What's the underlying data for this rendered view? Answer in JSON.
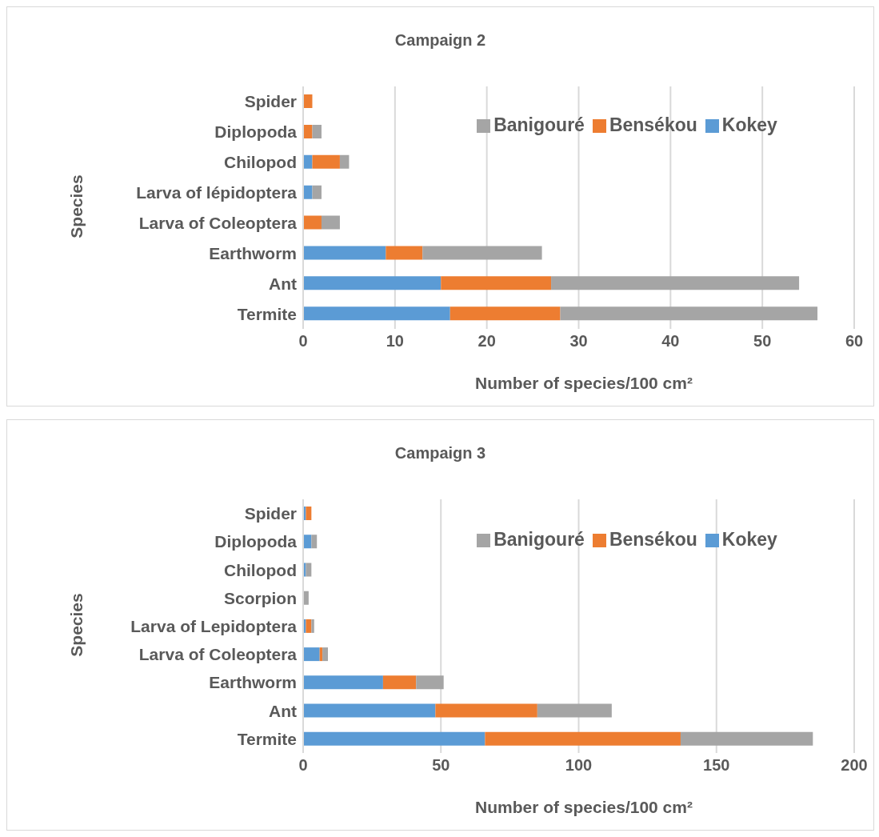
{
  "chart_data": [
    {
      "type": "bar",
      "orientation": "horizontal",
      "stacked": true,
      "title": "Campaign 2",
      "xlabel": "Number of species/100 cm²",
      "ylabel": "Species",
      "categories": [
        "Spider",
        "Diplopoda",
        "Chilopod",
        "Larva of lépidoptera",
        "Larva of Coleoptera",
        "Earthworm",
        "Ant",
        "Termite"
      ],
      "series": [
        {
          "name": "Kokey",
          "color": "#5b9bd5",
          "values": [
            0,
            0,
            1,
            1,
            0,
            9,
            15,
            16
          ]
        },
        {
          "name": "Bensékou",
          "color": "#ed7d31",
          "values": [
            1,
            1,
            3,
            0,
            2,
            4,
            12,
            12
          ]
        },
        {
          "name": "Banigouré",
          "color": "#a5a5a5",
          "values": [
            0,
            1,
            1,
            1,
            2,
            13,
            27,
            28
          ]
        }
      ],
      "xlim": [
        0,
        60
      ],
      "xticks": [
        0,
        10,
        20,
        30,
        40,
        50,
        60
      ],
      "grid": "x",
      "legend": "top"
    },
    {
      "type": "bar",
      "orientation": "horizontal",
      "stacked": true,
      "title": "Campaign 3",
      "xlabel": "Number of species/100 cm²",
      "ylabel": "Species",
      "categories": [
        "Spider",
        "Diplopoda",
        "Chilopod",
        "Scorpion ",
        "Larva of Lepidoptera",
        "Larva of Coleoptera",
        "Earthworm",
        "Ant",
        "Termite"
      ],
      "series": [
        {
          "name": "Kokey",
          "color": "#5b9bd5",
          "values": [
            1,
            3,
            1,
            0,
            1,
            6,
            29,
            48,
            66
          ]
        },
        {
          "name": "Bensékou",
          "color": "#ed7d31",
          "values": [
            2,
            0,
            0,
            0,
            2,
            1,
            12,
            37,
            71
          ]
        },
        {
          "name": "Banigouré",
          "color": "#a5a5a5",
          "values": [
            0,
            2,
            2,
            2,
            1,
            2,
            10,
            27,
            48
          ]
        }
      ],
      "xlim": [
        0,
        200
      ],
      "xticks": [
        0,
        50,
        100,
        150,
        200
      ],
      "grid": "x",
      "legend": "top"
    }
  ]
}
